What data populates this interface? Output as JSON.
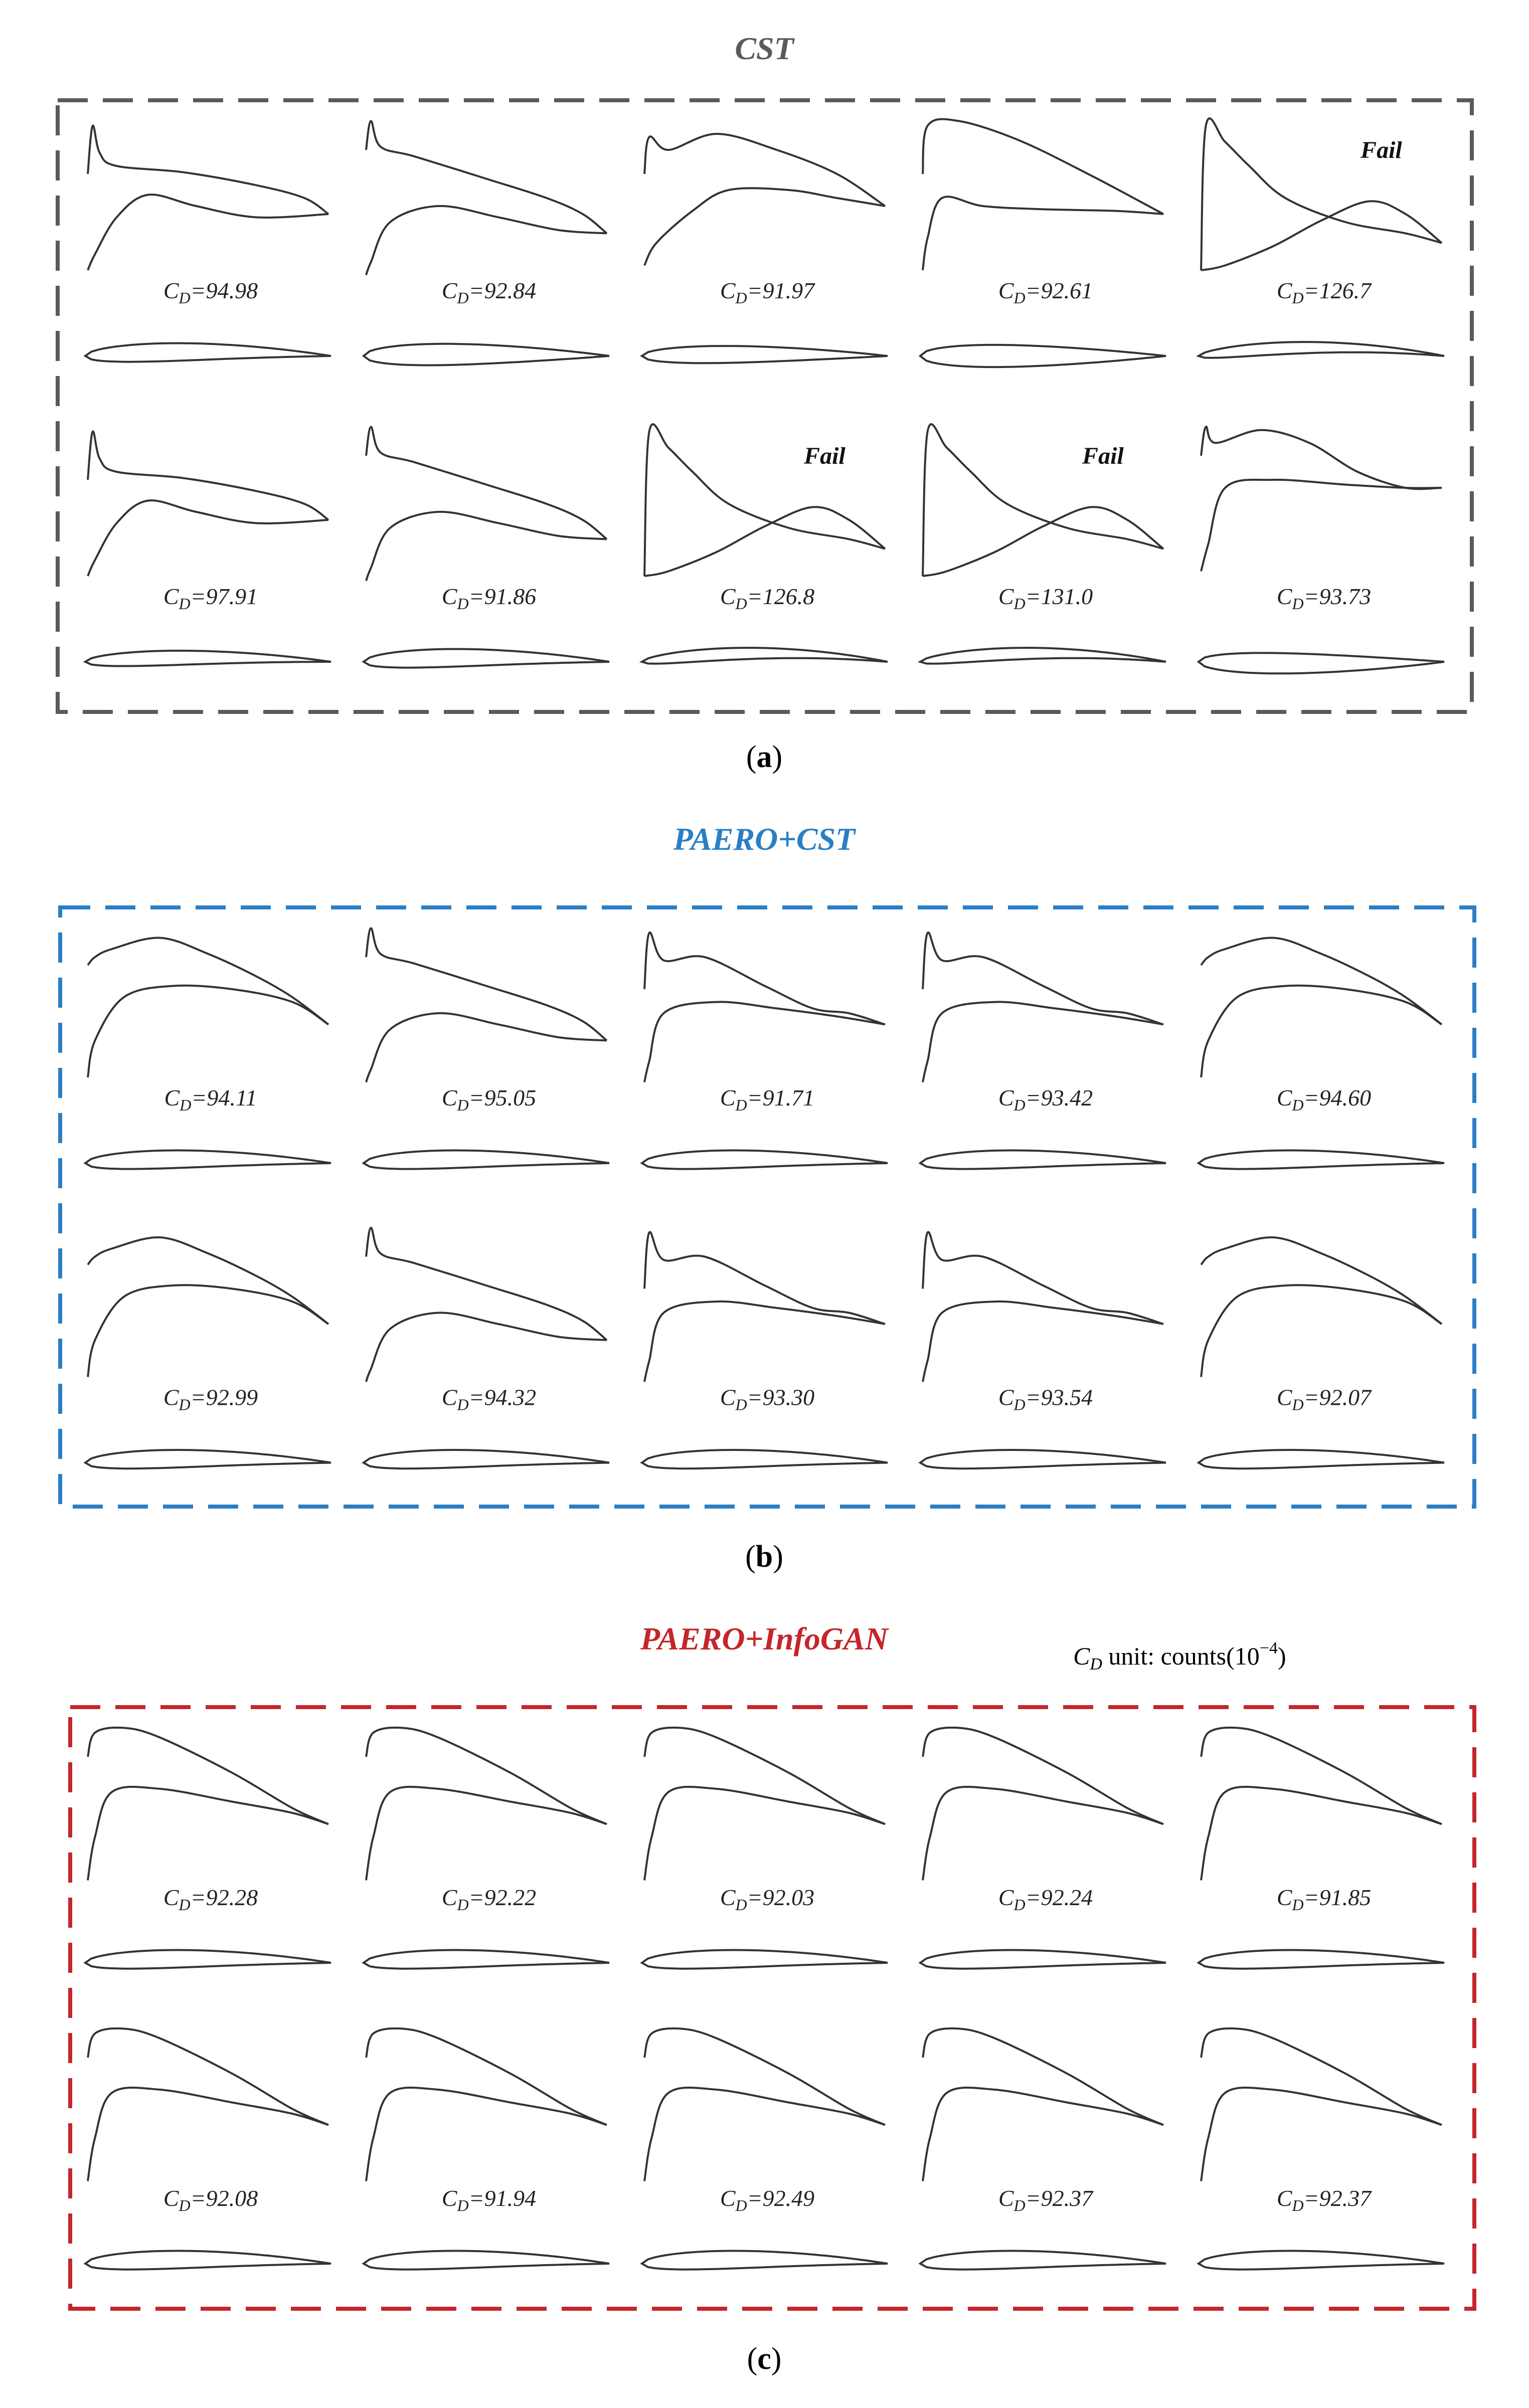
{
  "colors": {
    "cst": "#5a5a5a",
    "paero_cst": "#2a7fc4",
    "paero_infogan": "#c4262b",
    "curve": "#333333"
  },
  "unit_note": {
    "cd_symbol": "C",
    "cd_sub": "D",
    "text": " unit: counts(10",
    "exp": "−4",
    "close": ")"
  },
  "panels": [
    {
      "title": "CST",
      "caption_letter": "a",
      "color_key": "cst",
      "cells": [
        {
          "cd": "94.98",
          "cp": "A",
          "af": "a",
          "fail": false
        },
        {
          "cd": "92.84",
          "cp": "B",
          "af": "b",
          "fail": false
        },
        {
          "cd": "91.97",
          "cp": "C",
          "af": "c",
          "fail": false
        },
        {
          "cd": "92.61",
          "cp": "D",
          "af": "d",
          "fail": false
        },
        {
          "cd": "126.7",
          "cp": "F",
          "af": "f",
          "fail": true,
          "fail_text": "Fail"
        },
        {
          "cd": "97.91",
          "cp": "A",
          "af": "e",
          "fail": false
        },
        {
          "cd": "91.86",
          "cp": "B",
          "af": "a",
          "fail": false
        },
        {
          "cd": "126.8",
          "cp": "F",
          "af": "f",
          "fail": true,
          "fail_text": "Fail"
        },
        {
          "cd": "131.0",
          "cp": "F",
          "af": "f",
          "fail": true,
          "fail_text": "Fail"
        },
        {
          "cd": "93.73",
          "cp": "E",
          "af": "g",
          "fail": false
        }
      ]
    },
    {
      "title": "PAERO+CST",
      "caption_letter": "b",
      "color_key": "paero_cst",
      "cells": [
        {
          "cd": "94.11",
          "cp": "G",
          "af": "a"
        },
        {
          "cd": "95.05",
          "cp": "B",
          "af": "a"
        },
        {
          "cd": "91.71",
          "cp": "H",
          "af": "a"
        },
        {
          "cd": "93.42",
          "cp": "H",
          "af": "a"
        },
        {
          "cd": "94.60",
          "cp": "G",
          "af": "a"
        },
        {
          "cd": "92.99",
          "cp": "G",
          "af": "a"
        },
        {
          "cd": "94.32",
          "cp": "B",
          "af": "a"
        },
        {
          "cd": "93.30",
          "cp": "H",
          "af": "a"
        },
        {
          "cd": "93.54",
          "cp": "H",
          "af": "a"
        },
        {
          "cd": "92.07",
          "cp": "G",
          "af": "a"
        }
      ]
    },
    {
      "title": "PAERO+InfoGAN",
      "caption_letter": "c",
      "color_key": "paero_infogan",
      "cells": [
        {
          "cd": "92.28",
          "cp": "I",
          "af": "a"
        },
        {
          "cd": "92.22",
          "cp": "I",
          "af": "a"
        },
        {
          "cd": "92.03",
          "cp": "I",
          "af": "a"
        },
        {
          "cd": "92.24",
          "cp": "I",
          "af": "a"
        },
        {
          "cd": "91.85",
          "cp": "I",
          "af": "a"
        },
        {
          "cd": "92.08",
          "cp": "I",
          "af": "a"
        },
        {
          "cd": "91.94",
          "cp": "I",
          "af": "a"
        },
        {
          "cd": "92.49",
          "cp": "I",
          "af": "a"
        },
        {
          "cd": "92.37",
          "cp": "I",
          "af": "a"
        },
        {
          "cd": "92.37",
          "cp": "I",
          "af": "a"
        }
      ]
    }
  ]
}
